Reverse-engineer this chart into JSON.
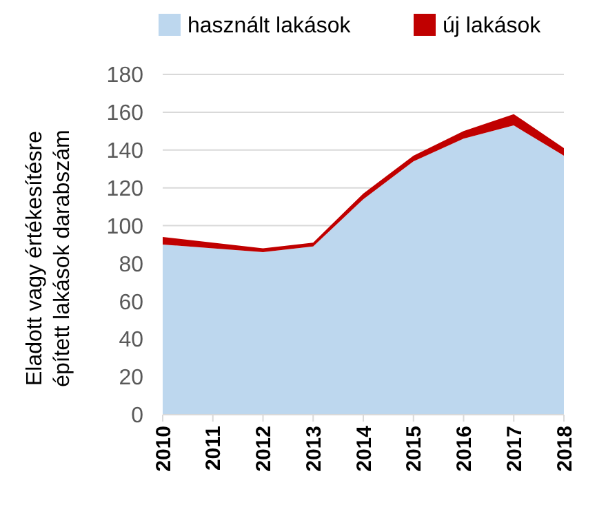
{
  "chart_data": {
    "type": "area",
    "stacked": true,
    "categories": [
      "2010",
      "2011",
      "2012",
      "2013",
      "2014",
      "2015",
      "2016",
      "2017",
      "2018"
    ],
    "series": [
      {
        "name": "használt lakások",
        "color": "#bdd7ee",
        "values": [
          90,
          88,
          86,
          89,
          114,
          134,
          146,
          153,
          137
        ]
      },
      {
        "name": "új lakások",
        "color": "#c00000",
        "values": [
          4,
          3,
          2,
          2,
          3,
          3,
          4,
          6,
          4
        ]
      }
    ],
    "ylabel": "Eladott vagy értékesítésre\népített lakások darabszám",
    "ylim": [
      0,
      180
    ],
    "yticks": [
      0,
      20,
      40,
      60,
      80,
      100,
      120,
      140,
      160,
      180
    ],
    "grid": "y",
    "legend": "top"
  }
}
